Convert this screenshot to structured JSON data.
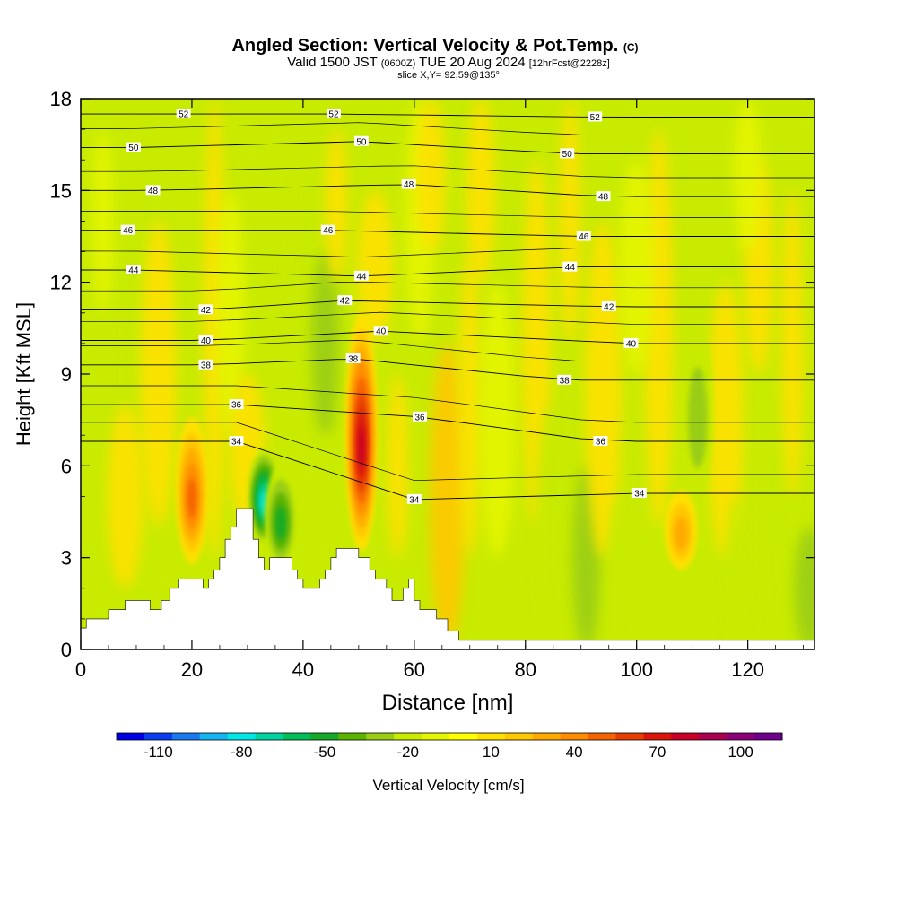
{
  "title": {
    "main": "Angled Section: Vertical Velocity & Pot.Temp.",
    "main_unit": "(C)",
    "valid_pre": "Valid 1500 JST",
    "valid_utc": "(0600Z)",
    "valid_post": "TUE 20 Aug 2024",
    "valid_fcst": "[12hrFcst@2228z]",
    "slice": "slice X,Y= 92,59@135°"
  },
  "chart_data": {
    "type": "heatmap",
    "xlabel": "Distance [nm]",
    "ylabel": "Height [Kft MSL]",
    "xlim": [
      0,
      132
    ],
    "ylim": [
      0,
      18
    ],
    "x_ticks": [
      0,
      20,
      40,
      60,
      80,
      100,
      120
    ],
    "y_ticks": [
      0,
      3,
      6,
      9,
      12,
      15,
      18
    ],
    "field": "Vertical Velocity",
    "colorbar": {
      "label": "Vertical Velocity [cm/s]",
      "min": -120,
      "max": 120,
      "step": 10,
      "tick_values": [
        -110,
        -80,
        -50,
        -20,
        10,
        40,
        70,
        100
      ],
      "tick_labels": [
        "-110",
        "-80",
        "-50",
        "-20",
        "10",
        "40",
        "70",
        "100"
      ],
      "colors": [
        "#0000e6",
        "#0a3cf0",
        "#1a78f0",
        "#14b4f0",
        "#00e6e6",
        "#00d2a0",
        "#00be5a",
        "#14aa28",
        "#5ab400",
        "#9acd14",
        "#c8eb00",
        "#e6f500",
        "#ffff00",
        "#ffe100",
        "#ffc800",
        "#ffaa00",
        "#ff8c00",
        "#f56400",
        "#e63c00",
        "#dc140a",
        "#c80028",
        "#aa0050",
        "#8c0078",
        "#6e008c"
      ]
    },
    "updraft_cores": [
      {
        "x": 20,
        "y_bottom": 2.8,
        "y_top": 7.6,
        "peak": 50
      },
      {
        "x": 50.5,
        "y_bottom": 3.2,
        "y_top": 11.0,
        "peak": 80
      },
      {
        "x": 108,
        "y_bottom": 2.6,
        "y_top": 5.2,
        "peak": 35
      }
    ],
    "downdraft_cores": [
      {
        "x": 33,
        "y_bottom": 3.4,
        "y_top": 6.6,
        "peak": -70
      },
      {
        "x": 36,
        "y_bottom": 2.6,
        "y_top": 6.0,
        "peak": -40
      },
      {
        "x": 111,
        "y_bottom": 5.0,
        "y_top": 10.5,
        "peak": -25
      }
    ],
    "theta_contours": [
      {
        "level": "52",
        "label_points": [
          [
            18.5,
            17.5
          ],
          [
            45.5,
            17.5
          ],
          [
            92.5,
            17.4
          ]
        ]
      },
      {
        "level": "50",
        "label_points": [
          [
            9.5,
            16.4
          ],
          [
            50.5,
            16.6
          ],
          [
            87.5,
            16.2
          ]
        ]
      },
      {
        "level": "48",
        "label_points": [
          [
            13,
            15.0
          ],
          [
            59,
            15.2
          ],
          [
            94,
            14.8
          ]
        ]
      },
      {
        "level": "46",
        "label_points": [
          [
            8.5,
            13.7
          ],
          [
            44.5,
            13.7
          ],
          [
            90.5,
            13.5
          ]
        ]
      },
      {
        "level": "44",
        "label_points": [
          [
            9.5,
            12.4
          ],
          [
            50.5,
            12.2
          ],
          [
            88,
            12.5
          ]
        ]
      },
      {
        "level": "42",
        "label_points": [
          [
            22.5,
            11.1
          ],
          [
            47.5,
            11.4
          ],
          [
            95,
            11.2
          ]
        ]
      },
      {
        "level": "40",
        "label_points": [
          [
            22.5,
            10.1
          ],
          [
            54,
            10.4
          ],
          [
            99,
            10.0
          ]
        ]
      },
      {
        "level": "38",
        "label_points": [
          [
            22.5,
            9.3
          ],
          [
            49,
            9.5
          ],
          [
            87,
            8.8
          ]
        ]
      },
      {
        "level": "36",
        "label_points": [
          [
            28,
            8.0
          ],
          [
            61,
            7.6
          ],
          [
            93.5,
            6.8
          ]
        ]
      },
      {
        "level": "34",
        "label_points": [
          [
            28,
            6.8
          ],
          [
            60,
            4.9
          ],
          [
            100.5,
            5.1
          ]
        ]
      }
    ],
    "terrain_profile": [
      [
        0,
        0.7
      ],
      [
        1,
        0.7
      ],
      [
        1,
        1.0
      ],
      [
        5,
        1.0
      ],
      [
        5,
        1.3
      ],
      [
        8,
        1.3
      ],
      [
        8,
        1.6
      ],
      [
        12.5,
        1.6
      ],
      [
        12.5,
        1.3
      ],
      [
        14.5,
        1.3
      ],
      [
        14.5,
        1.6
      ],
      [
        16,
        1.6
      ],
      [
        16,
        2.0
      ],
      [
        17.5,
        2.0
      ],
      [
        17.5,
        2.3
      ],
      [
        22,
        2.3
      ],
      [
        22,
        2.0
      ],
      [
        23,
        2.0
      ],
      [
        23,
        2.3
      ],
      [
        24,
        2.3
      ],
      [
        24,
        2.6
      ],
      [
        25,
        2.6
      ],
      [
        25,
        3.0
      ],
      [
        26,
        3.0
      ],
      [
        26,
        3.6
      ],
      [
        27,
        3.6
      ],
      [
        27,
        4.0
      ],
      [
        28,
        4.0
      ],
      [
        28,
        4.6
      ],
      [
        31,
        4.6
      ],
      [
        31,
        3.6
      ],
      [
        32,
        3.6
      ],
      [
        32,
        3.0
      ],
      [
        33,
        3.0
      ],
      [
        33,
        2.6
      ],
      [
        34,
        2.6
      ],
      [
        34,
        3.0
      ],
      [
        38,
        3.0
      ],
      [
        38,
        2.6
      ],
      [
        39,
        2.6
      ],
      [
        39,
        2.3
      ],
      [
        40,
        2.3
      ],
      [
        40,
        2.0
      ],
      [
        43,
        2.0
      ],
      [
        43,
        2.3
      ],
      [
        44,
        2.3
      ],
      [
        44,
        2.6
      ],
      [
        45,
        2.6
      ],
      [
        45,
        3.0
      ],
      [
        46,
        3.0
      ],
      [
        46,
        3.3
      ],
      [
        50,
        3.3
      ],
      [
        50,
        3.0
      ],
      [
        52,
        3.0
      ],
      [
        52,
        2.6
      ],
      [
        53,
        2.6
      ],
      [
        53,
        2.3
      ],
      [
        55,
        2.3
      ],
      [
        55,
        2.0
      ],
      [
        56,
        2.0
      ],
      [
        56,
        1.6
      ],
      [
        58,
        1.6
      ],
      [
        58,
        2.0
      ],
      [
        59,
        2.0
      ],
      [
        59,
        2.3
      ],
      [
        60,
        2.3
      ],
      [
        60,
        1.6
      ],
      [
        61,
        1.6
      ],
      [
        61,
        1.3
      ],
      [
        64,
        1.3
      ],
      [
        64,
        1.0
      ],
      [
        66,
        1.0
      ],
      [
        66,
        0.6
      ],
      [
        68,
        0.6
      ],
      [
        68,
        0.3
      ],
      [
        132,
        0.3
      ]
    ],
    "grid": false
  }
}
